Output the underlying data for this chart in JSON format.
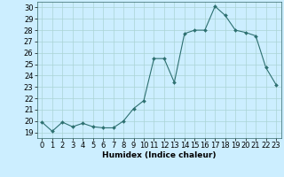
{
  "x": [
    0,
    1,
    2,
    3,
    4,
    5,
    6,
    7,
    8,
    9,
    10,
    11,
    12,
    13,
    14,
    15,
    16,
    17,
    18,
    19,
    20,
    21,
    22,
    23
  ],
  "y": [
    19.9,
    19.1,
    19.9,
    19.5,
    19.8,
    19.5,
    19.4,
    19.4,
    20.0,
    21.1,
    21.8,
    25.5,
    25.5,
    23.4,
    27.7,
    28.0,
    28.0,
    30.1,
    29.3,
    28.0,
    27.8,
    27.5,
    24.7,
    23.2
  ],
  "line_color": "#2d7070",
  "marker": "D",
  "marker_size": 2.0,
  "bg_color": "#cceeff",
  "grid_color": "#aad4d4",
  "xlabel": "Humidex (Indice chaleur)",
  "xlim": [
    -0.5,
    23.5
  ],
  "ylim": [
    18.5,
    30.5
  ],
  "yticks": [
    19,
    20,
    21,
    22,
    23,
    24,
    25,
    26,
    27,
    28,
    29,
    30
  ],
  "xtick_labels": [
    "0",
    "1",
    "2",
    "3",
    "4",
    "5",
    "6",
    "7",
    "8",
    "9",
    "10",
    "11",
    "12",
    "13",
    "14",
    "15",
    "16",
    "17",
    "18",
    "19",
    "20",
    "21",
    "22",
    "23"
  ],
  "axis_fontsize": 6.5,
  "tick_fontsize": 6.0
}
